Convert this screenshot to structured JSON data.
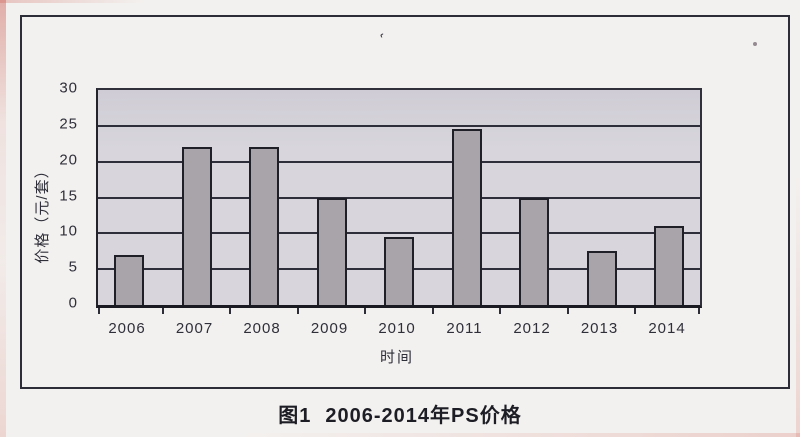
{
  "page": {
    "background": "#f3f1ef",
    "caption": {
      "prefix": "图1",
      "text": "2006-2014年PS价格"
    }
  },
  "chart_data": {
    "type": "bar",
    "title": "图1 2006-2014年PS价格",
    "categories": [
      "2006",
      "2007",
      "2008",
      "2009",
      "2010",
      "2011",
      "2012",
      "2013",
      "2014"
    ],
    "values": [
      7,
      22,
      22,
      15,
      9.5,
      24.5,
      15,
      7.5,
      11
    ],
    "xlabel": "时间",
    "ylabel": "价格（元/套）",
    "ylim": [
      0,
      30
    ],
    "yticks": [
      0,
      5,
      10,
      15,
      20,
      25,
      30
    ],
    "grid": "horizontal-only",
    "legend": "none",
    "colors": {
      "bar": "#a9a4aa",
      "bar_border": "#1f1f28",
      "plot_bg": "#d8d6dc",
      "gridline": "#2e2e3a",
      "frame": "#2d2d38",
      "text": "#2f2f3a"
    }
  }
}
